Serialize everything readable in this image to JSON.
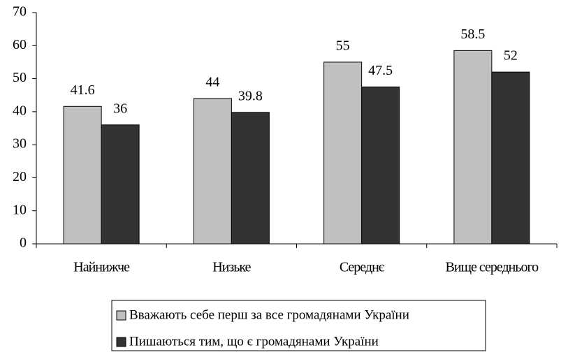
{
  "chart_data": {
    "type": "bar",
    "categories": [
      "Найнижче",
      "Низьке",
      "Середнє",
      "Вище середнього"
    ],
    "series": [
      {
        "name": "Вважають себе перш за все громадянами України",
        "color": "#c0c0c0",
        "values": [
          41.6,
          44,
          55,
          58.5
        ]
      },
      {
        "name": "Пишаються тим, що є громадянами України",
        "color": "#333333",
        "values": [
          36,
          39.8,
          47.5,
          52
        ]
      }
    ],
    "ylim": [
      0,
      70
    ],
    "yticks": [
      0,
      10,
      20,
      30,
      40,
      50,
      60,
      70
    ],
    "grid": false,
    "legend": "bottom"
  }
}
